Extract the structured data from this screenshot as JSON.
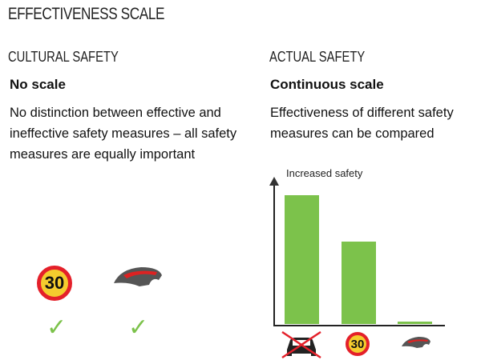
{
  "title": "EFFECTIVENESS SCALE",
  "left": {
    "heading": "CULTURAL SAFETY",
    "subheading": "No scale",
    "body": "No distinction between effective and ineffective safety measures – all safety measures are equally important",
    "sign_text": "30"
  },
  "right": {
    "heading": "ACTUAL SAFETY",
    "subheading": "Continuous scale",
    "body": "Effectiveness of different safety measures can be compared"
  },
  "chart_data": {
    "type": "bar",
    "ylabel": "Increased safety",
    "categories": [
      "no-car-icon",
      "speed-limit-30-sign",
      "bicycle-helmet-icon"
    ],
    "values": [
      100,
      64,
      2
    ],
    "ylim": [
      0,
      100
    ],
    "sign_text": "30"
  },
  "colors": {
    "bar": "#7cc24b",
    "check": "#7cc24b",
    "sign_border": "#e4202a",
    "sign_fill": "#f4cc2e"
  }
}
